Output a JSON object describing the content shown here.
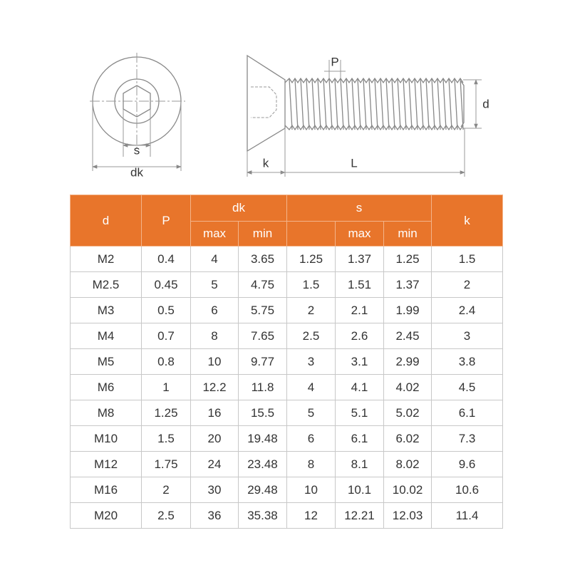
{
  "diagram": {
    "labels": {
      "s": "s",
      "dk": "dk",
      "P": "P",
      "d": "d",
      "k": "k",
      "L": "L"
    }
  },
  "table": {
    "header": {
      "d": "d",
      "P": "P",
      "dk": "dk",
      "s": "s",
      "k": "k",
      "dk_sub": [
        "max",
        "min"
      ],
      "s_sub": [
        "max",
        "min"
      ]
    },
    "rows": [
      [
        "M2",
        "0.4",
        "4",
        "3.65",
        "1.25",
        "1.37",
        "1.25",
        "1.5"
      ],
      [
        "M2.5",
        "0.45",
        "5",
        "4.75",
        "1.5",
        "1.51",
        "1.37",
        "2"
      ],
      [
        "M3",
        "0.5",
        "6",
        "5.75",
        "2",
        "2.1",
        "1.99",
        "2.4"
      ],
      [
        "M4",
        "0.7",
        "8",
        "7.65",
        "2.5",
        "2.6",
        "2.45",
        "3"
      ],
      [
        "M5",
        "0.8",
        "10",
        "9.77",
        "3",
        "3.1",
        "2.99",
        "3.8"
      ],
      [
        "M6",
        "1",
        "12.2",
        "11.8",
        "4",
        "4.1",
        "4.02",
        "4.5"
      ],
      [
        "M8",
        "1.25",
        "16",
        "15.5",
        "5",
        "5.1",
        "5.02",
        "6.1"
      ],
      [
        "M10",
        "1.5",
        "20",
        "19.48",
        "6",
        "6.1",
        "6.02",
        "7.3"
      ],
      [
        "M12",
        "1.75",
        "24",
        "23.48",
        "8",
        "8.1",
        "8.02",
        "9.6"
      ],
      [
        "M16",
        "2",
        "30",
        "29.48",
        "10",
        "10.1",
        "10.02",
        "10.6"
      ],
      [
        "M20",
        "2.5",
        "36",
        "35.38",
        "12",
        "12.21",
        "12.03",
        "11.4"
      ]
    ]
  }
}
